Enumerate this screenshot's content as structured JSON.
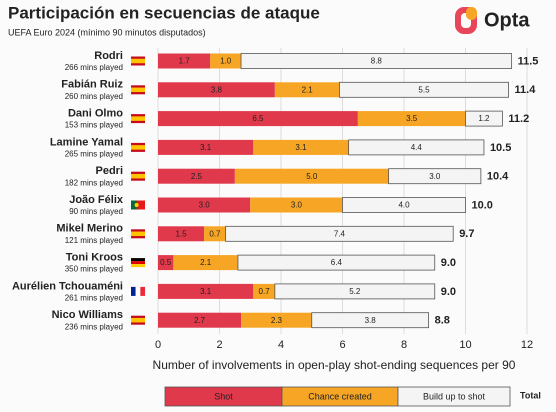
{
  "chart_data": {
    "type": "stacked-barh",
    "title": "Participación en secuencias de ataque",
    "subtitle": "UEFA Euro 2024 (mínimo 90 minutos disputados)",
    "brand": "Opta",
    "xlabel": "Number of involvements in open-play shot-ending sequences per 90",
    "categories": [
      "Rodri",
      "Fabián Ruiz",
      "Dani Olmo",
      "Lamine Yamal",
      "Pedri",
      "João Félix",
      "Mikel Merino",
      "Toni Kroos",
      "Aurélien Tchouaméni",
      "Nico Williams"
    ],
    "category_notes": [
      "266 mins played",
      "260 mins played",
      "153 mins played",
      "265 mins played",
      "182 mins played",
      "90 mins played",
      "121 mins played",
      "350 mins played",
      "261 mins played",
      "236 mins played"
    ],
    "series": [
      {
        "name": "Shot",
        "color": "#e0394b",
        "values": [
          1.7,
          3.8,
          6.5,
          3.1,
          2.5,
          3.0,
          1.5,
          0.5,
          3.1,
          2.7
        ],
        "value_labels": [
          "1.7",
          "3.8",
          "6.5",
          "3.1",
          "2.5",
          "3.0",
          "1.5",
          "0.5",
          "3.1",
          "2.7"
        ]
      },
      {
        "name": "Chance created",
        "color": "#f6a624",
        "values": [
          1.0,
          2.1,
          3.5,
          3.1,
          5.0,
          3.0,
          0.7,
          2.1,
          0.7,
          2.3
        ],
        "value_labels": [
          "1.0",
          "2.1",
          "3.5",
          "3.1",
          "5.0",
          "3.0",
          "0.7",
          "2.1",
          "0.7",
          "2.3"
        ]
      },
      {
        "name": "Build up to shot",
        "color": "#f4f4f4",
        "values": [
          8.8,
          5.5,
          1.2,
          4.4,
          3.0,
          4.0,
          7.4,
          6.4,
          5.2,
          3.8
        ],
        "value_labels": [
          "8.8",
          "5.5",
          "1.2",
          "4.4",
          "3.0",
          "4.0",
          "7.4",
          "6.4",
          "5.2",
          "3.8"
        ]
      }
    ],
    "total_label": "Total",
    "totals": [
      11.5,
      11.4,
      11.2,
      10.5,
      10.4,
      10.0,
      9.7,
      9.0,
      9.0,
      8.8
    ],
    "total_labels": [
      "11.5",
      "11.4",
      "11.2",
      "10.5",
      "10.4",
      "10.0",
      "9.7",
      "9.0",
      "9.0",
      "8.8"
    ],
    "xlim": [
      0,
      12
    ],
    "xticks": [
      0,
      2,
      4,
      6,
      8,
      10,
      12
    ],
    "grid": true
  }
}
